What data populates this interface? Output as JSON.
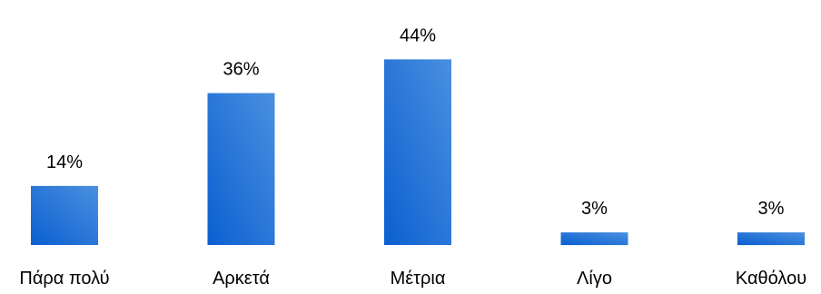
{
  "chart_data": {
    "type": "bar",
    "categories": [
      "Πάρα πολύ",
      "Αρκετά",
      "Μέτρια",
      "Λίγο",
      "Καθόλου"
    ],
    "values": [
      14,
      36,
      44,
      3,
      3
    ],
    "value_labels": [
      "14%",
      "36%",
      "44%",
      "3%",
      "3%"
    ],
    "title": "",
    "xlabel": "",
    "ylabel": "",
    "ylim": [
      0,
      50
    ],
    "grid": false,
    "legend": "none",
    "colors": {
      "bar_dark": "#0b5fd0",
      "bar_light": "#4a90e0"
    }
  }
}
